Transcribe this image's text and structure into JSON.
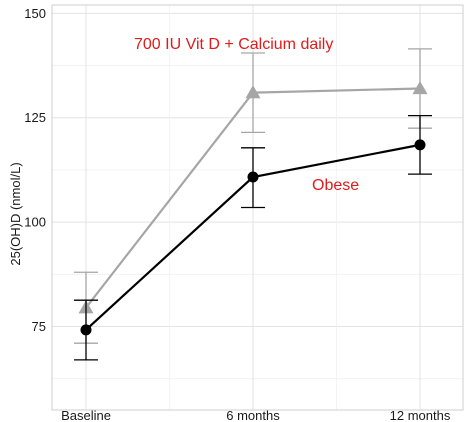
{
  "chart_data": {
    "type": "line",
    "title": "",
    "xlabel": "",
    "ylabel": "25(OH)D (nmol/L)",
    "categories": [
      "Baseline",
      "6 months",
      "12 months"
    ],
    "ylim": [
      55,
      152
    ],
    "yticks": [
      75,
      100,
      125,
      150
    ],
    "grid": true,
    "series": [
      {
        "values": [
          79.5,
          131,
          132
        ],
        "error_low": [
          71,
          121.5,
          122.5
        ],
        "error_high": [
          88,
          140.5,
          141.5
        ],
        "color": "#a6a6a6",
        "marker": "triangle"
      },
      {
        "values": [
          74.2,
          110.8,
          118.5
        ],
        "error_low": [
          67,
          103.5,
          111.5
        ],
        "error_high": [
          81.3,
          117.8,
          125.5
        ],
        "color": "#000000",
        "marker": "circle"
      }
    ],
    "annotations": [
      {
        "text": "700 IU Vit D + Calcium daily",
        "color": "#e01b1b"
      },
      {
        "text": "Obese",
        "color": "#e01b1b"
      }
    ]
  }
}
